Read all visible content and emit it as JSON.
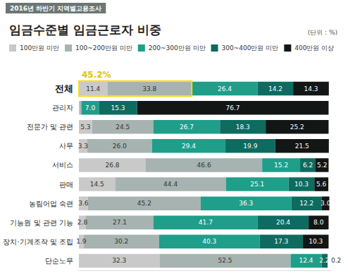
{
  "chart_data": {
    "type": "bar",
    "orientation": "horizontal",
    "stacked": true,
    "data_labels": true,
    "tick_labels": "y",
    "grid": false,
    "legend": "top",
    "subtitle": "2016년 하반기 지역별고용조사",
    "title": "임금수준별 임금근로자 비중",
    "unit_label": "(단위 : %)",
    "annotations": [
      {
        "text": "45.2%",
        "category": "전체",
        "series": [
          0,
          1
        ]
      }
    ],
    "categories": [
      "전체",
      "관리자",
      "전문가 및 관련",
      "사무",
      "서비스",
      "판매",
      "농림어업 숙련",
      "기능원 및 관련 기능",
      "장치·기계조작 및 조립",
      "단순노무"
    ],
    "xlim": [
      0,
      101
    ],
    "xticks": [],
    "series": [
      {
        "name": "100만원 미만",
        "color": "#c9c9c9",
        "values": [
          11.4,
          0.3,
          5.3,
          3.3,
          26.8,
          14.5,
          3.6,
          2.8,
          1.9,
          32.3
        ],
        "value_labels": [
          "11.4",
          null,
          "5.3",
          "3.3",
          "26.8",
          "14.5",
          "3.6",
          "2.8",
          "1.9",
          "32.3"
        ]
      },
      {
        "name": "100~200만원 미만",
        "color": "#a7b3b0",
        "values": [
          33.8,
          0.7,
          24.5,
          26.0,
          46.6,
          44.4,
          45.2,
          27.1,
          30.2,
          52.5
        ],
        "value_labels": [
          "33.8",
          null,
          "24.5",
          "26.0",
          "46.6",
          "44.4",
          "45.2",
          "27.1",
          "30.2",
          "52.5"
        ]
      },
      {
        "name": "200~300만원 미만",
        "color": "#1f9e8a",
        "values": [
          26.4,
          7.0,
          26.7,
          29.4,
          15.2,
          25.1,
          36.3,
          41.7,
          40.3,
          12.4
        ],
        "value_labels": [
          "26.4",
          "7.0",
          "26.7",
          "29.4",
          "15.2",
          "25.1",
          "36.3",
          "41.7",
          "40.3",
          "12.4"
        ]
      },
      {
        "name": "300~400만원 미만",
        "color": "#0d6b5f",
        "values": [
          14.2,
          15.3,
          18.3,
          19.9,
          6.2,
          10.3,
          12.2,
          20.4,
          17.3,
          2.2
        ],
        "value_labels": [
          "14.2",
          "15.3",
          "18.3",
          "19.9",
          "6.2",
          "10.3",
          "12.2",
          "20.4",
          "17.3",
          "2.2"
        ]
      },
      {
        "name": "400만원 이상",
        "color": "#121614",
        "values": [
          14.3,
          76.7,
          25.2,
          21.5,
          5.2,
          5.6,
          3.0,
          8.0,
          10.3,
          0.2
        ],
        "value_labels": [
          "14.3",
          "76.7",
          "25.2",
          "21.5",
          "5.2",
          "5.6",
          "3.0",
          "8.0",
          "10.3",
          "0.2"
        ]
      }
    ]
  }
}
